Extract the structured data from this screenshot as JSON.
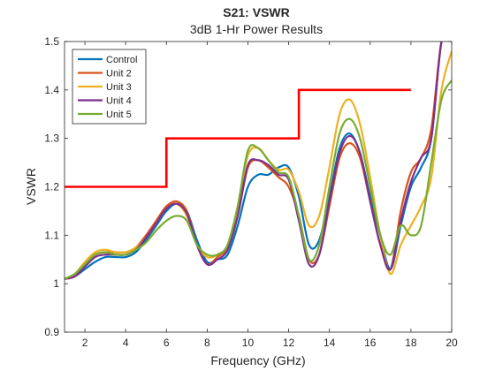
{
  "chart_data": {
    "type": "line",
    "title": "S21: VSWR",
    "subtitle": "3dB 1-Hr Power Results",
    "xlabel": "Frequency (GHz)",
    "ylabel": "VSWR",
    "xlim": [
      1,
      20
    ],
    "ylim": [
      0.9,
      1.5
    ],
    "x_ticks": [
      2,
      4,
      6,
      8,
      10,
      12,
      14,
      16,
      18,
      20
    ],
    "y_ticks": [
      0.9,
      1,
      1.1,
      1.2,
      1.3,
      1.4,
      1.5
    ],
    "grid": false,
    "legend_position": "top-left",
    "limit_line": {
      "color": "#ff0000",
      "x": [
        1,
        6,
        6,
        12.5,
        12.5,
        18
      ],
      "y": [
        1.2,
        1.2,
        1.3,
        1.3,
        1.4,
        1.4
      ]
    },
    "series": [
      {
        "name": "Control",
        "color": "#0072bd",
        "x": [
          1,
          1.5,
          2,
          2.5,
          3,
          3.5,
          4,
          4.5,
          5,
          5.5,
          6,
          6.5,
          7,
          7.5,
          8,
          8.5,
          9,
          9.5,
          10,
          10.5,
          11,
          11.5,
          12,
          12.5,
          13,
          13.5,
          14,
          14.5,
          15,
          15.5,
          16,
          16.5,
          17,
          17.5,
          18,
          18.5,
          19,
          19.5,
          20
        ],
        "y": [
          1.01,
          1.015,
          1.03,
          1.045,
          1.055,
          1.055,
          1.055,
          1.065,
          1.09,
          1.12,
          1.15,
          1.165,
          1.15,
          1.09,
          1.045,
          1.05,
          1.06,
          1.12,
          1.2,
          1.225,
          1.225,
          1.24,
          1.24,
          1.18,
          1.08,
          1.09,
          1.18,
          1.28,
          1.31,
          1.27,
          1.18,
          1.1,
          1.03,
          1.12,
          1.2,
          1.24,
          1.3,
          1.5,
          1.52
        ]
      },
      {
        "name": "Unit 2",
        "color": "#d95319",
        "x": [
          1,
          1.5,
          2,
          2.5,
          3,
          3.5,
          4,
          4.5,
          5,
          5.5,
          6,
          6.5,
          7,
          7.5,
          8,
          8.5,
          9,
          9.5,
          10,
          10.5,
          11,
          11.5,
          12,
          12.5,
          13,
          13.5,
          14,
          14.5,
          15,
          15.5,
          16,
          16.5,
          17,
          17.5,
          18,
          18.5,
          19,
          19.5,
          20
        ],
        "y": [
          1.01,
          1.015,
          1.04,
          1.06,
          1.065,
          1.065,
          1.065,
          1.075,
          1.1,
          1.13,
          1.16,
          1.17,
          1.15,
          1.08,
          1.04,
          1.055,
          1.075,
          1.14,
          1.24,
          1.255,
          1.24,
          1.22,
          1.2,
          1.14,
          1.05,
          1.06,
          1.16,
          1.26,
          1.29,
          1.26,
          1.17,
          1.08,
          1.03,
          1.15,
          1.23,
          1.26,
          1.32,
          1.5,
          1.52
        ]
      },
      {
        "name": "Unit 3",
        "color": "#edb120",
        "x": [
          1,
          1.5,
          2,
          2.5,
          3,
          3.5,
          4,
          4.5,
          5,
          5.5,
          6,
          6.5,
          7,
          7.5,
          8,
          8.5,
          9,
          9.5,
          10,
          10.5,
          11,
          11.5,
          12,
          12.5,
          13,
          13.5,
          14,
          14.5,
          15,
          15.5,
          16,
          16.5,
          17,
          17.5,
          18,
          18.5,
          19,
          19.5,
          20
        ],
        "y": [
          1.01,
          1.02,
          1.045,
          1.065,
          1.07,
          1.065,
          1.065,
          1.075,
          1.095,
          1.125,
          1.155,
          1.165,
          1.14,
          1.08,
          1.055,
          1.06,
          1.08,
          1.16,
          1.265,
          1.28,
          1.255,
          1.235,
          1.235,
          1.19,
          1.12,
          1.14,
          1.24,
          1.35,
          1.38,
          1.33,
          1.22,
          1.1,
          1.02,
          1.08,
          1.12,
          1.16,
          1.22,
          1.4,
          1.48
        ]
      },
      {
        "name": "Unit 4",
        "color": "#7e2f8e",
        "x": [
          1,
          1.5,
          2,
          2.5,
          3,
          3.5,
          4,
          4.5,
          5,
          5.5,
          6,
          6.5,
          7,
          7.5,
          8,
          8.5,
          9,
          9.5,
          10,
          10.5,
          11,
          11.5,
          12,
          12.5,
          13,
          13.5,
          14,
          14.5,
          15,
          15.5,
          16,
          16.5,
          17,
          17.5,
          18,
          18.5,
          19,
          19.5,
          20
        ],
        "y": [
          1.01,
          1.015,
          1.035,
          1.055,
          1.06,
          1.06,
          1.06,
          1.07,
          1.095,
          1.125,
          1.155,
          1.165,
          1.145,
          1.08,
          1.04,
          1.05,
          1.07,
          1.14,
          1.245,
          1.255,
          1.245,
          1.225,
          1.215,
          1.13,
          1.04,
          1.06,
          1.17,
          1.27,
          1.305,
          1.27,
          1.17,
          1.08,
          1.03,
          1.13,
          1.21,
          1.26,
          1.3,
          1.5,
          1.52
        ]
      },
      {
        "name": "Unit 5",
        "color": "#77ac30",
        "x": [
          1,
          1.5,
          2,
          2.5,
          3,
          3.5,
          4,
          4.5,
          5,
          5.5,
          6,
          6.5,
          7,
          7.5,
          8,
          8.5,
          9,
          9.5,
          10,
          10.5,
          11,
          11.5,
          12,
          12.5,
          13,
          13.5,
          14,
          14.5,
          15,
          15.5,
          16,
          16.5,
          17,
          17.5,
          18,
          18.5,
          19,
          19.5,
          20
        ],
        "y": [
          1.01,
          1.02,
          1.04,
          1.06,
          1.065,
          1.06,
          1.06,
          1.07,
          1.085,
          1.11,
          1.13,
          1.14,
          1.13,
          1.08,
          1.06,
          1.06,
          1.08,
          1.16,
          1.275,
          1.28,
          1.255,
          1.23,
          1.22,
          1.14,
          1.05,
          1.08,
          1.2,
          1.31,
          1.34,
          1.3,
          1.2,
          1.1,
          1.06,
          1.12,
          1.1,
          1.12,
          1.25,
          1.38,
          1.42
        ]
      }
    ]
  }
}
